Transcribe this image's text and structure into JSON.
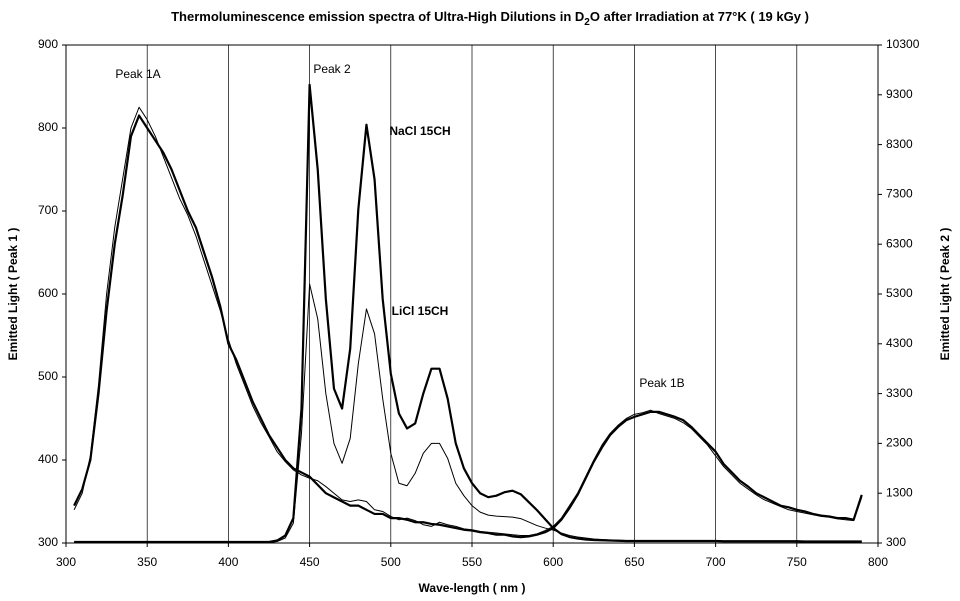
{
  "chart_data": {
    "type": "line",
    "title": [
      "Thermoluminescence emission spectra of Ultra-High Dilutions in D",
      "2",
      "O after Irradiation at 77°K ( 19 kGy )"
    ],
    "x_label": "Wave-length ( nm )",
    "y_label": "Emitted Light ( Peak 1 )",
    "y2_label": "Emitted Light ( Peak 2 )",
    "xlim": [
      300,
      800
    ],
    "xticks": [
      300,
      350,
      400,
      450,
      500,
      550,
      600,
      650,
      700,
      750,
      800
    ],
    "ylim": [
      300,
      900
    ],
    "yticks": [
      300,
      400,
      500,
      600,
      700,
      800,
      900
    ],
    "y2lim": [
      300,
      10300
    ],
    "y2ticks": [
      300,
      1300,
      2300,
      3300,
      4300,
      5300,
      6300,
      7300,
      8300,
      9300,
      10300
    ],
    "grid": "x",
    "annotations": [
      "Peak 1A",
      "Peak 2",
      "NaCl 15CH",
      "LiCl 15CH",
      "Peak 1B"
    ],
    "x": [
      305,
      310,
      315,
      320,
      325,
      330,
      335,
      340,
      345,
      350,
      355,
      360,
      365,
      370,
      375,
      380,
      385,
      390,
      395,
      400,
      405,
      410,
      415,
      420,
      425,
      430,
      435,
      440,
      445,
      450,
      455,
      460,
      465,
      470,
      475,
      480,
      485,
      490,
      495,
      500,
      505,
      510,
      515,
      520,
      525,
      530,
      535,
      540,
      545,
      550,
      555,
      560,
      565,
      570,
      575,
      580,
      585,
      590,
      595,
      600,
      605,
      610,
      615,
      620,
      625,
      630,
      635,
      640,
      645,
      650,
      655,
      660,
      665,
      670,
      675,
      680,
      685,
      690,
      695,
      700,
      705,
      710,
      715,
      720,
      725,
      730,
      735,
      740,
      745,
      750,
      755,
      760,
      765,
      770,
      775,
      780,
      785,
      790
    ],
    "series": [
      {
        "color": "#000000",
        "width": 2.2,
        "axis": "y",
        "values": [
          345,
          365,
          400,
          480,
          580,
          660,
          720,
          790,
          815,
          800,
          785,
          770,
          750,
          725,
          700,
          680,
          650,
          620,
          585,
          540,
          520,
          495,
          470,
          450,
          430,
          415,
          400,
          390,
          385,
          380,
          370,
          360,
          355,
          350,
          345,
          345,
          340,
          335,
          335,
          330,
          330,
          328,
          325,
          325,
          323,
          322,
          320,
          318,
          316,
          315,
          313,
          312,
          310,
          310,
          308,
          307,
          308,
          310,
          313,
          318,
          328,
          342,
          358,
          378,
          398,
          415,
          430,
          440,
          448,
          452,
          455,
          458,
          458,
          455,
          452,
          448,
          440,
          430,
          420,
          410,
          395,
          385,
          375,
          368,
          360,
          355,
          350,
          345,
          343,
          340,
          338,
          335,
          333,
          332,
          330,
          330,
          328,
          358
        ]
      },
      {
        "color": "#000000",
        "width": 1,
        "axis": "y",
        "values": [
          340,
          360,
          405,
          490,
          600,
          680,
          740,
          800,
          825,
          810,
          790,
          765,
          740,
          715,
          695,
          670,
          640,
          610,
          580,
          545,
          515,
          490,
          465,
          445,
          428,
          410,
          398,
          388,
          382,
          378,
          375,
          368,
          360,
          352,
          350,
          352,
          350,
          340,
          338,
          332,
          328,
          330,
          327,
          322,
          320,
          325,
          322,
          320,
          317,
          316,
          314,
          313,
          312,
          311,
          310,
          309,
          309,
          311,
          315,
          320,
          330,
          345,
          360,
          380,
          400,
          418,
          432,
          442,
          450,
          455,
          457,
          460,
          456,
          453,
          450,
          445,
          438,
          428,
          418,
          405,
          392,
          382,
          372,
          365,
          358,
          352,
          348,
          344,
          340,
          338,
          336,
          334,
          332,
          331,
          329,
          328,
          327,
          355
        ]
      },
      {
        "color": "#000000",
        "width": 2.2,
        "axis": "y2",
        "values": [
          320,
          320,
          320,
          320,
          320,
          320,
          320,
          320,
          320,
          320,
          320,
          320,
          320,
          320,
          320,
          320,
          320,
          320,
          320,
          320,
          320,
          320,
          320,
          320,
          320,
          350,
          450,
          800,
          3000,
          9500,
          7800,
          5200,
          3400,
          3000,
          4200,
          7000,
          8700,
          7600,
          5200,
          3700,
          2900,
          2600,
          2700,
          3300,
          3800,
          3800,
          3200,
          2300,
          1800,
          1500,
          1300,
          1220,
          1250,
          1320,
          1350,
          1280,
          1120,
          960,
          780,
          600,
          480,
          420,
          390,
          370,
          360,
          355,
          350,
          345,
          340,
          340,
          340,
          340,
          340,
          340,
          340,
          340,
          340,
          340,
          340,
          340,
          335,
          335,
          335,
          335,
          335,
          335,
          335,
          335,
          335,
          335,
          330,
          330,
          330,
          330,
          330,
          330,
          330,
          330
        ]
      },
      {
        "color": "#000000",
        "width": 1,
        "axis": "y2",
        "values": [
          310,
          310,
          310,
          310,
          310,
          310,
          310,
          310,
          310,
          310,
          310,
          310,
          310,
          310,
          310,
          310,
          310,
          310,
          310,
          310,
          310,
          310,
          310,
          310,
          310,
          330,
          400,
          700,
          2500,
          5500,
          4800,
          3300,
          2300,
          1900,
          2400,
          3900,
          5000,
          4500,
          3200,
          2100,
          1500,
          1450,
          1700,
          2100,
          2300,
          2300,
          2000,
          1500,
          1250,
          1050,
          920,
          860,
          840,
          830,
          820,
          790,
          720,
          650,
          600,
          560,
          500,
          450,
          420,
          400,
          380,
          370,
          360,
          355,
          350,
          345,
          340,
          340,
          340,
          340,
          340,
          340,
          340,
          340,
          340,
          340,
          335,
          335,
          335,
          335,
          335,
          335,
          335,
          335,
          335,
          335,
          330,
          330,
          330,
          330,
          330,
          330,
          330,
          330
        ]
      }
    ]
  }
}
